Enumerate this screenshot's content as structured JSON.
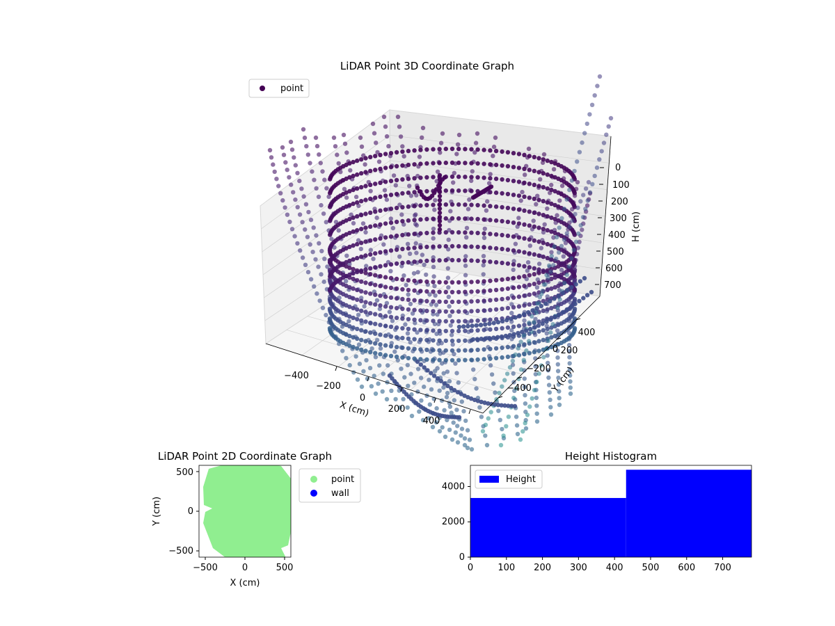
{
  "chart_data": [
    {
      "type": "scatter",
      "projection": "3d",
      "title": "LiDAR Point 3D Coordinate Graph",
      "xlabel": "X (cm)",
      "ylabel": "Y (cm)",
      "zlabel": "H (cm)",
      "xticks": [
        "−400",
        "−200",
        "0",
        "200",
        "400"
      ],
      "yticks": [
        "−400",
        "−200",
        "0",
        "200",
        "400"
      ],
      "zticks": [
        "0",
        "100",
        "200",
        "300",
        "400",
        "500",
        "600",
        "700"
      ],
      "xlim": [
        -560,
        560
      ],
      "ylim": [
        -560,
        560
      ],
      "zlim": [
        0,
        760
      ],
      "z_inverted": true,
      "grid": true,
      "legend": {
        "position": "upper-left",
        "entries": [
          "point"
        ]
      },
      "series": [
        {
          "name": "point",
          "colormap": "viridis",
          "color_by": "height",
          "marker_color": "#440154"
        }
      ]
    },
    {
      "type": "scatter",
      "title": "LiDAR Point 2D Coordinate Graph",
      "xlabel": "X (cm)",
      "ylabel": "Y (cm)",
      "xticks": [
        "−500",
        "0",
        "500"
      ],
      "yticks": [
        "−500",
        "0",
        "500"
      ],
      "xlim": [
        -580,
        580
      ],
      "ylim": [
        -580,
        580
      ],
      "legend": {
        "position": "outside-right",
        "entries": [
          "point",
          "wall"
        ]
      },
      "series": [
        {
          "name": "point",
          "color": "#90ee90"
        },
        {
          "name": "wall",
          "color": "#0000ff"
        }
      ]
    },
    {
      "type": "bar",
      "title": "Height Histogram",
      "xticks": [
        "0",
        "100",
        "200",
        "300",
        "400",
        "500",
        "600",
        "700"
      ],
      "yticks": [
        "0",
        "2000",
        "4000"
      ],
      "xlim": [
        0,
        780
      ],
      "ylim": [
        0,
        5200
      ],
      "legend": {
        "position": "upper-left",
        "entries": [
          "Height"
        ]
      },
      "series": [
        {
          "name": "Height",
          "color": "#0000ff",
          "bins": [
            {
              "x0": 0,
              "x1": 432,
              "count": 3350
            },
            {
              "x0": 432,
              "x1": 780,
              "count": 4950
            }
          ]
        }
      ]
    }
  ]
}
